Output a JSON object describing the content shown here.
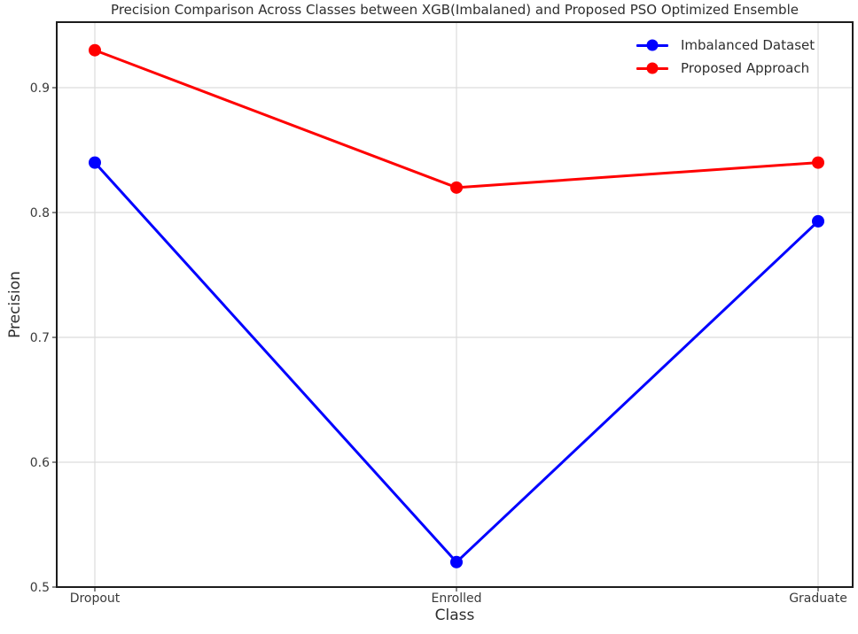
{
  "title": "Precision Comparison Across Classes between XGB(Imbalaned) and Proposed PSO Optimized Ensemble",
  "axes": {
    "xlabel": "Class",
    "ylabel": "Precision"
  },
  "legend": {
    "items": [
      {
        "label": "Imbalanced Dataset",
        "color": "#0000ff"
      },
      {
        "label": "Proposed Approach",
        "color": "#ff0000"
      }
    ]
  },
  "colors": {
    "background": "#ffffff",
    "grid": "#dcdcdc",
    "frame": "#1c1c1c",
    "tick_text": "#3a3a3a",
    "title_text": "#2e2e2e",
    "series_blue": "#0000ff",
    "series_red": "#ff0000"
  },
  "chart_data": {
    "type": "line",
    "categories": [
      "Dropout",
      "Enrolled",
      "Graduate"
    ],
    "series": [
      {
        "name": "Imbalanced Dataset",
        "color": "#0000ff",
        "values": [
          0.84,
          0.52,
          0.793
        ]
      },
      {
        "name": "Proposed Approach",
        "color": "#ff0000",
        "values": [
          0.93,
          0.82,
          0.84
        ]
      }
    ],
    "title": "Precision Comparison Across Classes between XGB(Imbalaned) and Proposed PSO Optimized Ensemble",
    "xlabel": "Class",
    "ylabel": "Precision",
    "ylim": [
      0.5,
      0.9525
    ],
    "yticks": [
      0.5,
      0.6,
      0.7,
      0.8,
      0.9
    ],
    "ytick_labels": [
      "0.5",
      "0.6",
      "0.7",
      "0.8",
      "0.9"
    ],
    "grid": true,
    "legend_position": "upper right",
    "marker": "o",
    "line_width": 3,
    "marker_size": 14
  }
}
